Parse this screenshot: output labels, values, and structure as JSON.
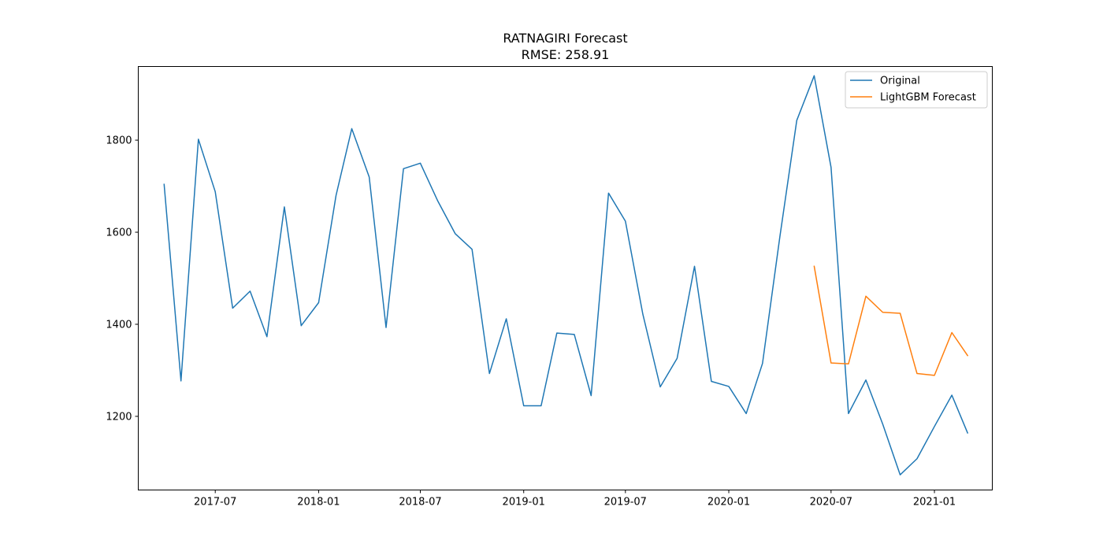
{
  "chart_data": {
    "type": "line",
    "title_line1": "RATNAGIRI Forecast",
    "title_line2": "RMSE: 258.91",
    "xlabel": "",
    "ylabel": "",
    "xlim": [
      "2017-02-14",
      "2021-04-14"
    ],
    "ylim": [
      1040,
      1960
    ],
    "x_ticks": [
      "2017-07-01",
      "2018-01-01",
      "2018-07-01",
      "2019-01-01",
      "2019-07-01",
      "2020-01-01",
      "2020-07-01",
      "2021-01-01"
    ],
    "x_tick_labels": [
      "2017-07",
      "2018-01",
      "2018-07",
      "2019-01",
      "2019-07",
      "2020-01",
      "2020-07",
      "2021-01"
    ],
    "y_ticks": [
      1200,
      1400,
      1600,
      1800
    ],
    "y_tick_labels": [
      "1200",
      "1400",
      "1600",
      "1800"
    ],
    "grid": false,
    "legend_position": "top-right",
    "series": [
      {
        "name": "Original",
        "color": "#1f77b4",
        "points": [
          [
            "2017-04-01",
            1704
          ],
          [
            "2017-05-01",
            1277
          ],
          [
            "2017-06-01",
            1802
          ],
          [
            "2017-07-01",
            1688
          ],
          [
            "2017-08-01",
            1435
          ],
          [
            "2017-09-01",
            1472
          ],
          [
            "2017-10-01",
            1373
          ],
          [
            "2017-11-01",
            1655
          ],
          [
            "2017-12-01",
            1397
          ],
          [
            "2018-01-01",
            1447
          ],
          [
            "2018-02-01",
            1680
          ],
          [
            "2018-03-01",
            1825
          ],
          [
            "2018-04-01",
            1720
          ],
          [
            "2018-05-01",
            1393
          ],
          [
            "2018-06-01",
            1738
          ],
          [
            "2018-07-01",
            1750
          ],
          [
            "2018-08-01",
            1668
          ],
          [
            "2018-09-01",
            1597
          ],
          [
            "2018-10-01",
            1563
          ],
          [
            "2018-11-01",
            1293
          ],
          [
            "2018-12-01",
            1412
          ],
          [
            "2019-01-01",
            1223
          ],
          [
            "2019-02-01",
            1223
          ],
          [
            "2019-03-01",
            1381
          ],
          [
            "2019-04-01",
            1378
          ],
          [
            "2019-05-01",
            1245
          ],
          [
            "2019-06-01",
            1685
          ],
          [
            "2019-07-01",
            1624
          ],
          [
            "2019-08-01",
            1422
          ],
          [
            "2019-09-01",
            1264
          ],
          [
            "2019-10-01",
            1326
          ],
          [
            "2019-11-01",
            1526
          ],
          [
            "2019-12-01",
            1276
          ],
          [
            "2020-01-01",
            1265
          ],
          [
            "2020-02-01",
            1206
          ],
          [
            "2020-03-01",
            1315
          ],
          [
            "2020-04-01",
            1591
          ],
          [
            "2020-05-01",
            1843
          ],
          [
            "2020-06-01",
            1940
          ],
          [
            "2020-07-01",
            1741
          ],
          [
            "2020-08-01",
            1206
          ],
          [
            "2020-09-01",
            1279
          ],
          [
            "2020-10-01",
            1183
          ],
          [
            "2020-11-01",
            1073
          ],
          [
            "2020-12-01",
            1108
          ],
          [
            "2021-01-01",
            1178
          ],
          [
            "2021-02-01",
            1246
          ],
          [
            "2021-03-01",
            1164
          ]
        ]
      },
      {
        "name": "LightGBM Forecast",
        "color": "#ff7f0e",
        "points": [
          [
            "2020-06-01",
            1526
          ],
          [
            "2020-07-01",
            1316
          ],
          [
            "2020-08-01",
            1314
          ],
          [
            "2020-09-01",
            1461
          ],
          [
            "2020-10-01",
            1426
          ],
          [
            "2020-11-01",
            1424
          ],
          [
            "2020-12-01",
            1293
          ],
          [
            "2021-01-01",
            1289
          ],
          [
            "2021-02-01",
            1382
          ],
          [
            "2021-03-01",
            1332
          ]
        ]
      }
    ]
  }
}
